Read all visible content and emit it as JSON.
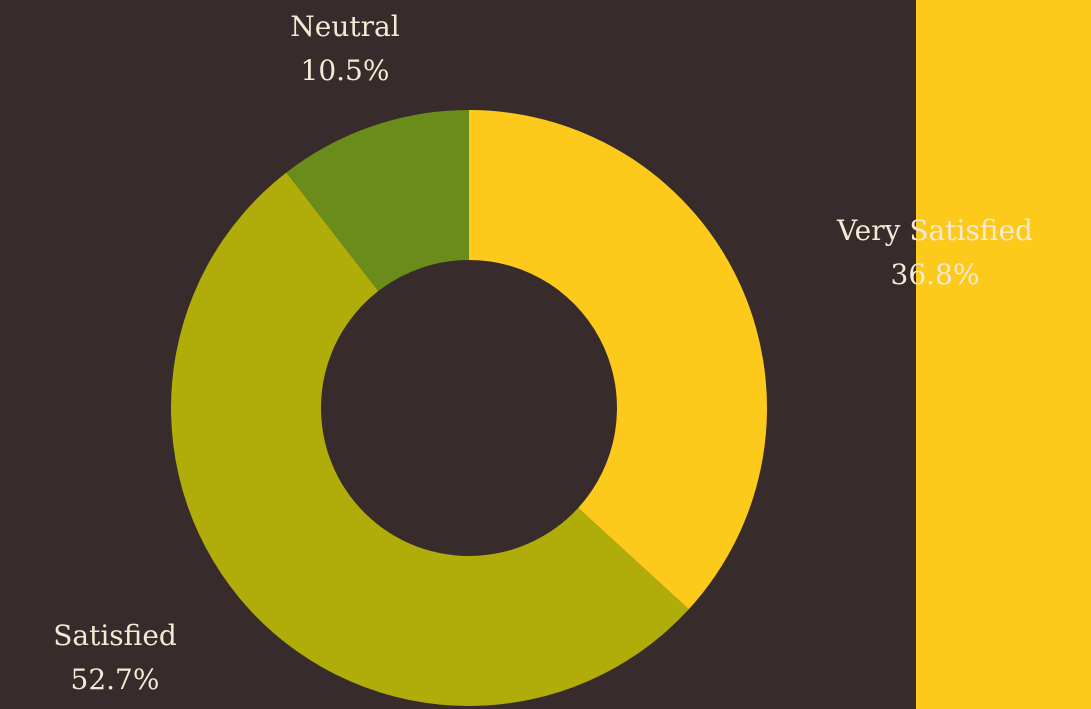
{
  "colors": {
    "background": "#382b2b",
    "accent_bar": "#fdc91a",
    "label_text": "#f3ead6"
  },
  "chart_data": {
    "type": "pie",
    "style": "donut",
    "start_angle": "12 o'clock",
    "direction": "clockwise",
    "categories": [
      "Very Satisfied",
      "Satisfied",
      "Neutral"
    ],
    "values": [
      36.8,
      52.7,
      10.5
    ],
    "value_labels": [
      "36.8%",
      "52.7%",
      "10.5%"
    ],
    "colors": [
      "#fdc91a",
      "#b0ad0a",
      "#6a8c1b"
    ],
    "legend": "none"
  }
}
